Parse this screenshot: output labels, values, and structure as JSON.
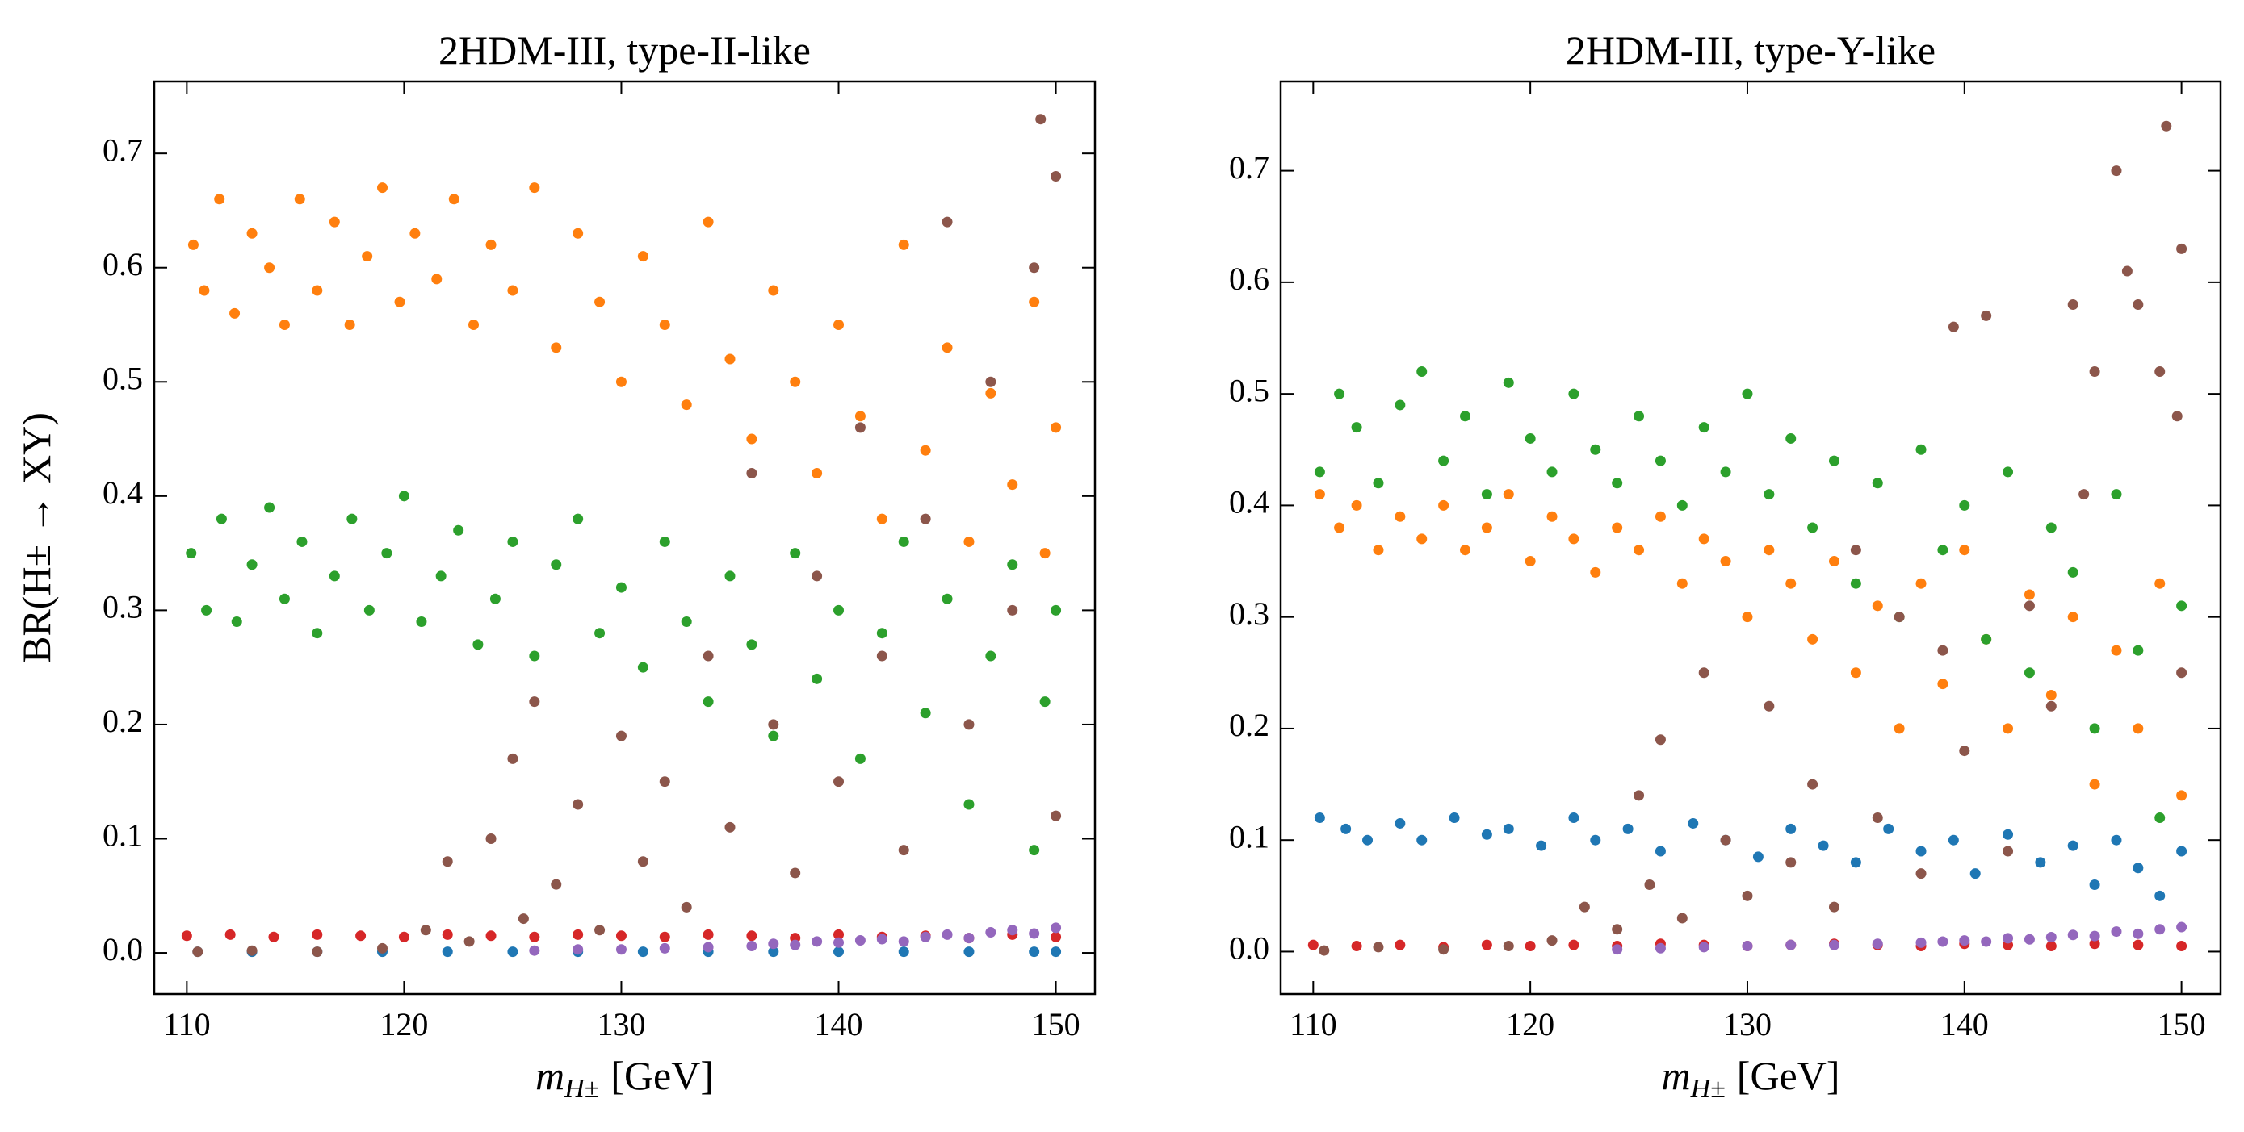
{
  "chart_data": [
    {
      "type": "scatter",
      "title": "2HDM-III, type-II-like",
      "xlabel": {
        "symbol": "m",
        "subscript": "H±",
        "unit": "[GeV]"
      },
      "ylabel": "BR(H± → XY)",
      "xlim": [
        108.5,
        151.8
      ],
      "ylim": [
        -0.036,
        0.763
      ],
      "xticks": [
        110,
        120,
        130,
        140,
        150
      ],
      "yticks": [
        {
          "value": 0,
          "label": "0.0"
        },
        0.1,
        0.2,
        0.3,
        0.4,
        0.5,
        0.6,
        0.7
      ],
      "series": [
        {
          "color": "#1f77b4",
          "x": [
            110.5,
            113,
            116,
            119,
            122,
            125,
            128,
            131,
            134,
            137,
            140,
            143,
            146,
            149,
            150
          ],
          "y": [
            0.001,
            0.001,
            0.001,
            0.001,
            0.001,
            0.001,
            0.001,
            0.001,
            0.001,
            0.001,
            0.001,
            0.001,
            0.001,
            0.001,
            0.001
          ]
        },
        {
          "color": "#ff7f0e",
          "x": [
            110.3,
            110.8,
            111.5,
            112.2,
            113,
            113.8,
            114.5,
            115.2,
            116,
            116.8,
            117.5,
            118.3,
            119,
            119.8,
            120.5,
            121.5,
            122.3,
            123.2,
            124,
            125,
            126,
            127,
            128,
            129,
            130,
            131,
            132,
            133,
            134,
            135,
            136,
            137,
            138,
            139,
            140,
            141,
            142,
            143,
            144,
            145,
            146,
            147,
            148,
            149,
            149.5,
            150
          ],
          "y": [
            0.62,
            0.58,
            0.66,
            0.56,
            0.63,
            0.6,
            0.55,
            0.66,
            0.58,
            0.64,
            0.55,
            0.61,
            0.67,
            0.57,
            0.63,
            0.59,
            0.66,
            0.55,
            0.62,
            0.58,
            0.67,
            0.53,
            0.63,
            0.57,
            0.5,
            0.61,
            0.55,
            0.48,
            0.64,
            0.52,
            0.45,
            0.58,
            0.5,
            0.42,
            0.55,
            0.47,
            0.38,
            0.62,
            0.44,
            0.53,
            0.36,
            0.49,
            0.41,
            0.57,
            0.35,
            0.46
          ]
        },
        {
          "color": "#2ca02c",
          "x": [
            110.2,
            110.9,
            111.6,
            112.3,
            113,
            113.8,
            114.5,
            115.3,
            116,
            116.8,
            117.6,
            118.4,
            119.2,
            120,
            120.8,
            121.7,
            122.5,
            123.4,
            124.2,
            125,
            126,
            127,
            128,
            129,
            130,
            131,
            132,
            133,
            134,
            135,
            136,
            137,
            138,
            139,
            140,
            141,
            142,
            143,
            144,
            145,
            146,
            147,
            148,
            149,
            149.5,
            150
          ],
          "y": [
            0.35,
            0.3,
            0.38,
            0.29,
            0.34,
            0.39,
            0.31,
            0.36,
            0.28,
            0.33,
            0.38,
            0.3,
            0.35,
            0.4,
            0.29,
            0.33,
            0.37,
            0.27,
            0.31,
            0.36,
            0.26,
            0.34,
            0.38,
            0.28,
            0.32,
            0.25,
            0.36,
            0.29,
            0.22,
            0.33,
            0.27,
            0.19,
            0.35,
            0.24,
            0.3,
            0.17,
            0.28,
            0.36,
            0.21,
            0.31,
            0.13,
            0.26,
            0.34,
            0.09,
            0.22,
            0.3
          ]
        },
        {
          "color": "#d62728",
          "x": [
            110,
            112,
            114,
            116,
            118,
            120,
            122,
            124,
            126,
            128,
            130,
            132,
            134,
            136,
            138,
            140,
            142,
            144,
            146,
            148,
            150
          ],
          "y": [
            0.015,
            0.016,
            0.014,
            0.016,
            0.015,
            0.014,
            0.016,
            0.015,
            0.014,
            0.016,
            0.015,
            0.014,
            0.016,
            0.015,
            0.013,
            0.016,
            0.014,
            0.015,
            0.013,
            0.016,
            0.014
          ]
        },
        {
          "color": "#9467bd",
          "x": [
            126,
            128,
            130,
            132,
            134,
            136,
            137,
            138,
            139,
            140,
            141,
            142,
            143,
            144,
            145,
            146,
            147,
            148,
            149,
            150
          ],
          "y": [
            0.002,
            0.003,
            0.003,
            0.004,
            0.005,
            0.006,
            0.008,
            0.007,
            0.01,
            0.009,
            0.011,
            0.012,
            0.01,
            0.014,
            0.016,
            0.013,
            0.018,
            0.02,
            0.017,
            0.022
          ]
        },
        {
          "color": "#8c564b",
          "x": [
            110.5,
            113,
            116,
            119,
            121,
            122,
            123,
            124,
            125,
            125.5,
            126,
            127,
            128,
            129,
            130,
            131,
            132,
            133,
            134,
            135,
            136,
            137,
            138,
            139,
            140,
            141,
            142,
            143,
            144,
            145,
            146,
            147,
            148,
            149,
            149.3,
            150,
            150
          ],
          "y": [
            0.001,
            0.002,
            0.001,
            0.004,
            0.02,
            0.08,
            0.01,
            0.1,
            0.17,
            0.03,
            0.22,
            0.06,
            0.13,
            0.02,
            0.19,
            0.08,
            0.15,
            0.04,
            0.26,
            0.11,
            0.42,
            0.2,
            0.07,
            0.33,
            0.15,
            0.46,
            0.26,
            0.09,
            0.38,
            0.64,
            0.2,
            0.5,
            0.3,
            0.6,
            0.73,
            0.68,
            0.12
          ]
        }
      ]
    },
    {
      "type": "scatter",
      "title": "2HDM-III, type-Y-like",
      "xlabel": {
        "symbol": "m",
        "subscript": "H±",
        "unit": "[GeV]"
      },
      "xlim": [
        108.5,
        151.8
      ],
      "ylim": [
        -0.038,
        0.78
      ],
      "xticks": [
        110,
        120,
        130,
        140,
        150
      ],
      "yticks": [
        {
          "value": 0,
          "label": "0.0"
        },
        0.1,
        0.2,
        0.3,
        0.4,
        0.5,
        0.6,
        0.7
      ],
      "series": [
        {
          "color": "#1f77b4",
          "x": [
            110.3,
            111.5,
            112.5,
            114,
            115,
            116.5,
            118,
            119,
            120.5,
            122,
            123,
            124.5,
            126,
            127.5,
            129,
            130.5,
            132,
            133.5,
            135,
            136.5,
            138,
            139.5,
            140.5,
            142,
            143.5,
            145,
            146,
            147,
            148,
            149,
            150
          ],
          "y": [
            0.12,
            0.11,
            0.1,
            0.115,
            0.1,
            0.12,
            0.105,
            0.11,
            0.095,
            0.12,
            0.1,
            0.11,
            0.09,
            0.115,
            0.1,
            0.085,
            0.11,
            0.095,
            0.08,
            0.11,
            0.09,
            0.1,
            0.07,
            0.105,
            0.08,
            0.095,
            0.06,
            0.1,
            0.075,
            0.05,
            0.09
          ]
        },
        {
          "color": "#ff7f0e",
          "x": [
            110.3,
            111.2,
            112,
            113,
            114,
            115,
            116,
            117,
            118,
            119,
            120,
            121,
            122,
            123,
            124,
            125,
            126,
            127,
            128,
            129,
            130,
            131,
            132,
            133,
            134,
            135,
            136,
            137,
            138,
            139,
            140,
            141,
            142,
            143,
            144,
            145,
            146,
            147,
            148,
            149,
            150
          ],
          "y": [
            0.41,
            0.38,
            0.4,
            0.36,
            0.39,
            0.37,
            0.4,
            0.36,
            0.38,
            0.41,
            0.35,
            0.39,
            0.37,
            0.34,
            0.38,
            0.36,
            0.39,
            0.33,
            0.37,
            0.35,
            0.3,
            0.36,
            0.33,
            0.28,
            0.35,
            0.25,
            0.31,
            0.2,
            0.33,
            0.24,
            0.36,
            0.28,
            0.2,
            0.32,
            0.23,
            0.3,
            0.15,
            0.27,
            0.2,
            0.33,
            0.14
          ]
        },
        {
          "color": "#2ca02c",
          "x": [
            110.3,
            111.2,
            112,
            113,
            114,
            115,
            116,
            117,
            118,
            119,
            120,
            121,
            122,
            123,
            124,
            125,
            126,
            127,
            128,
            129,
            130,
            131,
            132,
            133,
            134,
            135,
            136,
            137,
            138,
            139,
            140,
            141,
            142,
            143,
            144,
            145,
            146,
            147,
            148,
            149,
            150
          ],
          "y": [
            0.43,
            0.5,
            0.47,
            0.42,
            0.49,
            0.52,
            0.44,
            0.48,
            0.41,
            0.51,
            0.46,
            0.43,
            0.5,
            0.45,
            0.42,
            0.48,
            0.44,
            0.4,
            0.47,
            0.43,
            0.5,
            0.41,
            0.46,
            0.38,
            0.44,
            0.33,
            0.42,
            0.3,
            0.45,
            0.36,
            0.4,
            0.28,
            0.43,
            0.25,
            0.38,
            0.34,
            0.2,
            0.41,
            0.27,
            0.12,
            0.31
          ]
        },
        {
          "color": "#d62728",
          "x": [
            110,
            112,
            114,
            116,
            118,
            120,
            122,
            124,
            126,
            128,
            130,
            132,
            134,
            136,
            138,
            140,
            142,
            144,
            146,
            148,
            150
          ],
          "y": [
            0.006,
            0.005,
            0.006,
            0.004,
            0.006,
            0.005,
            0.006,
            0.005,
            0.007,
            0.006,
            0.005,
            0.006,
            0.007,
            0.006,
            0.005,
            0.007,
            0.006,
            0.005,
            0.007,
            0.006,
            0.005
          ]
        },
        {
          "color": "#9467bd",
          "x": [
            124,
            126,
            128,
            130,
            132,
            134,
            136,
            138,
            139,
            140,
            141,
            142,
            143,
            144,
            145,
            146,
            147,
            148,
            149,
            150
          ],
          "y": [
            0.002,
            0.003,
            0.004,
            0.005,
            0.006,
            0.006,
            0.007,
            0.008,
            0.009,
            0.01,
            0.009,
            0.012,
            0.011,
            0.013,
            0.015,
            0.014,
            0.018,
            0.016,
            0.02,
            0.022
          ]
        },
        {
          "color": "#8c564b",
          "x": [
            110.5,
            113,
            116,
            119,
            121,
            122.5,
            124,
            125,
            125.5,
            126,
            127,
            128,
            129,
            130,
            131,
            132,
            133,
            134,
            135,
            136,
            137,
            138,
            139,
            139.5,
            140,
            141,
            142,
            143,
            144,
            145,
            145.5,
            146,
            147,
            147.5,
            148,
            149,
            149.3,
            149.8,
            150,
            150
          ],
          "y": [
            0.001,
            0.004,
            0.002,
            0.005,
            0.01,
            0.04,
            0.02,
            0.14,
            0.06,
            0.19,
            0.03,
            0.25,
            0.1,
            0.05,
            0.22,
            0.08,
            0.15,
            0.04,
            0.36,
            0.12,
            0.3,
            0.07,
            0.27,
            0.56,
            0.18,
            0.57,
            0.09,
            0.31,
            0.22,
            0.58,
            0.41,
            0.52,
            0.7,
            0.61,
            0.58,
            0.52,
            0.74,
            0.48,
            0.63,
            0.25
          ]
        }
      ]
    }
  ]
}
